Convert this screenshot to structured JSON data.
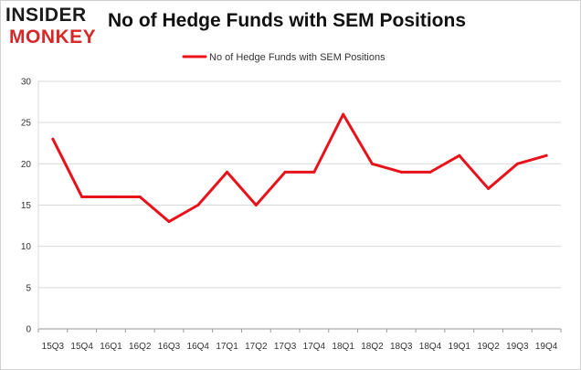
{
  "header": {
    "logo_line1": "INSIDER",
    "logo_line2": "MONKEY"
  },
  "chart_data": {
    "type": "line",
    "title": "No of Hedge Funds with SEM Positions",
    "xlabel": "",
    "ylabel": "",
    "categories": [
      "15Q3",
      "15Q4",
      "16Q1",
      "16Q2",
      "16Q3",
      "16Q4",
      "17Q1",
      "17Q2",
      "17Q3",
      "17Q4",
      "18Q1",
      "18Q2",
      "18Q3",
      "18Q4",
      "19Q1",
      "19Q2",
      "19Q3",
      "19Q4"
    ],
    "series": [
      {
        "name": "No of Hedge Funds with SEM Positions",
        "color": "#e8121a",
        "values": [
          23,
          16,
          16,
          16,
          13,
          15,
          19,
          15,
          19,
          19,
          26,
          20,
          19,
          19,
          21,
          17,
          20,
          21
        ]
      }
    ],
    "ylim": [
      0,
      30
    ],
    "yticks": [
      0,
      5,
      10,
      15,
      20,
      25,
      30
    ],
    "grid": true,
    "legend_position": "top-center"
  }
}
